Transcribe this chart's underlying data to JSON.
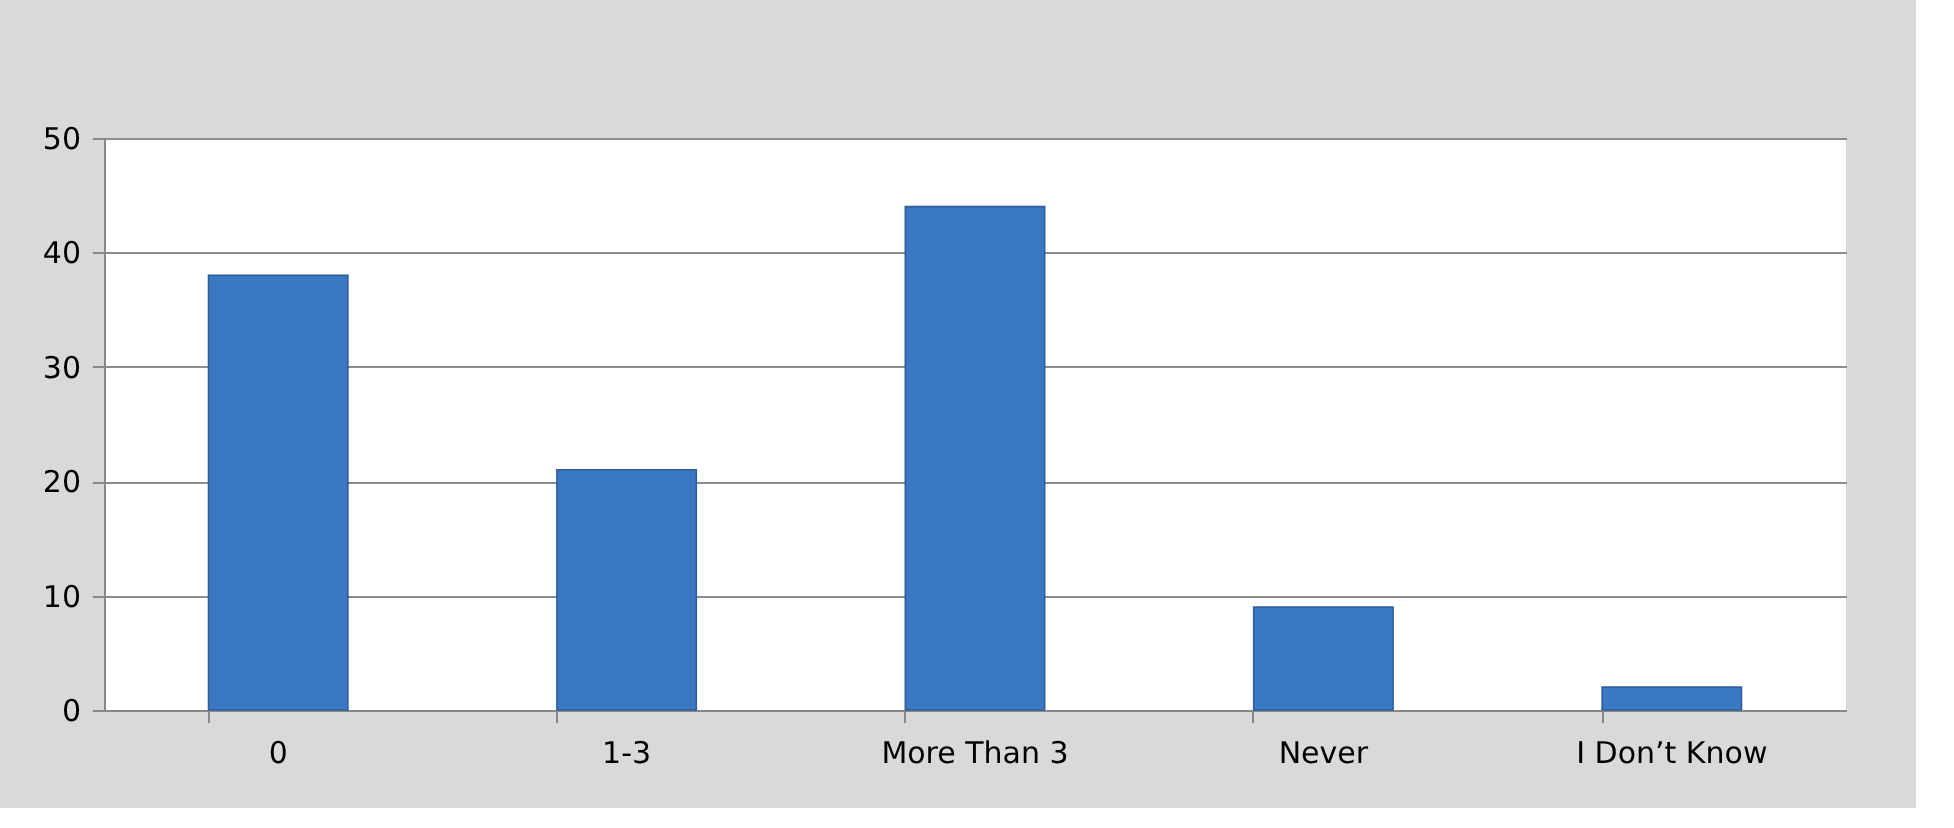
{
  "chart_data": {
    "type": "bar",
    "categories": [
      "0",
      "1-3",
      "More Than 3",
      "Never",
      "I Don’t Know"
    ],
    "values": [
      38,
      21,
      44,
      9,
      2
    ],
    "color": "#3a78c2",
    "ylim": [
      0,
      50
    ],
    "yticks": [
      0,
      10,
      20,
      30,
      40,
      50
    ],
    "grid": "y"
  }
}
